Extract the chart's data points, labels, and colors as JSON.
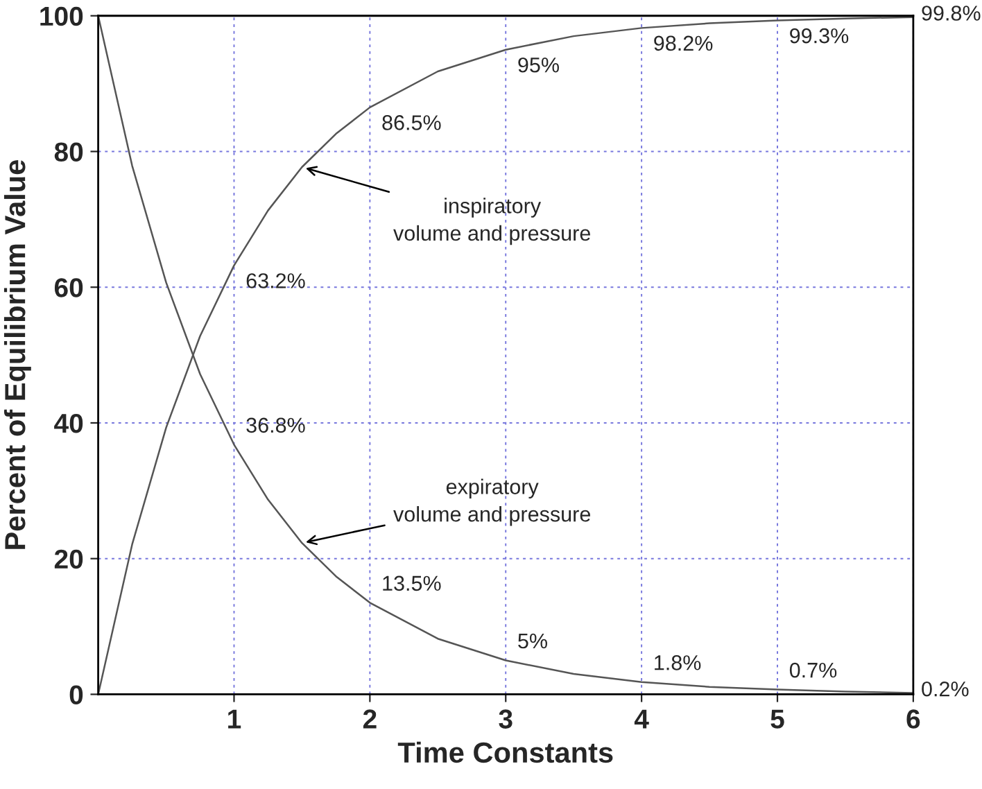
{
  "chart_data": {
    "type": "line",
    "xlabel": "Time Constants",
    "ylabel": "Percent of Equilibrium Value",
    "x": [
      0,
      0.25,
      0.5,
      0.75,
      1,
      1.25,
      1.5,
      1.75,
      2,
      2.5,
      3,
      3.5,
      4,
      4.5,
      5,
      5.5,
      6
    ],
    "series": [
      {
        "color": "#555555",
        "values": [
          0,
          22.1,
          39.3,
          52.8,
          63.2,
          71.3,
          77.7,
          82.6,
          86.5,
          91.8,
          95,
          97.0,
          98.2,
          98.9,
          99.3,
          99.6,
          99.8
        ],
        "value_labels": [
          null,
          null,
          null,
          null,
          "63.2%",
          null,
          null,
          null,
          "86.5%",
          null,
          "95%",
          null,
          "98.2%",
          null,
          "99.3%",
          null,
          "99.8%"
        ]
      },
      {
        "color": "#555555",
        "values": [
          100,
          77.9,
          60.7,
          47.2,
          36.8,
          28.7,
          22.3,
          17.4,
          13.5,
          8.2,
          5,
          3.0,
          1.8,
          1.1,
          0.7,
          0.4,
          0.2
        ],
        "value_labels": [
          null,
          null,
          null,
          null,
          "36.8%",
          null,
          null,
          null,
          "13.5%",
          null,
          "5%",
          null,
          "1.8%",
          null,
          "0.7%",
          null,
          "0.2%"
        ]
      }
    ],
    "annotations": [
      {
        "text": "inspiratory\nvolume and pressure",
        "x": 1.5,
        "y": 77.7
      },
      {
        "text": "expiratory\nvolume and pressure",
        "x": 1.5,
        "y": 22.3
      }
    ],
    "xlim": [
      0,
      6
    ],
    "xticks": [
      1,
      2,
      3,
      4,
      5,
      6
    ],
    "ylim": [
      0,
      100
    ],
    "yticks": [
      0,
      20,
      40,
      60,
      80,
      100
    ],
    "grid": true,
    "legend": false,
    "marker": "none",
    "line_style": "solid"
  }
}
